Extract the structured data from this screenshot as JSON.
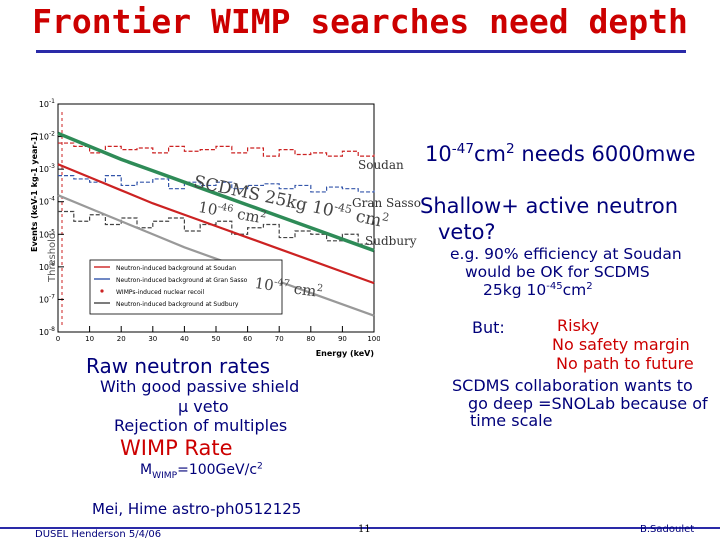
{
  "slide": {
    "title": "Frontier WIMP searches need depth",
    "headline_html": "10<sup>-47</sup>cm<sup>2</sup> needs 6000mwe",
    "shallow": "Shallow+ active neutron",
    "veto": "veto?",
    "example_line1": "e.g. 90% efficiency at Soudan",
    "example_line2": "would be OK for SCDMS",
    "example_line3_html": "25kg 10<sup>-45</sup>cm<sup>2</sup>",
    "but": "But:",
    "risky": "Risky",
    "no_safety": "No safety margin",
    "no_path": "No path to future",
    "collab1": "SCDMS collaboration wants to",
    "collab2": "go deep =SNOLab because of",
    "collab3": "time scale",
    "raw_rates": "Raw  neutron rates",
    "passive1": "With good passive shield",
    "passive2": "μ veto",
    "passive3": "Rejection of multiples",
    "wimp_rate": "WIMP Rate",
    "wimp_mass_html": "M<sub>WIMP</sub>=100GeV/c<sup>2</sup>",
    "reference": "Mei, Hime astro-ph0512125",
    "footer_left": "DUSEL Henderson 5/4/06",
    "footer_page": "11",
    "footer_right": "B.Sadoulet"
  },
  "chart_data": {
    "type": "line",
    "title": "",
    "xlabel": "Energy (keV)",
    "ylabel": "Events (keV-1 kg-1 year-1)",
    "xlim": [
      0,
      100
    ],
    "ylim_log10": [
      -8,
      -1
    ],
    "log_y": true,
    "x_ticks": [
      "0",
      "10",
      "20",
      "30",
      "40",
      "50",
      "60",
      "70",
      "80",
      "90",
      "100"
    ],
    "y_ticks": [
      "10-8",
      "10-7",
      "10-6",
      "10-5",
      "10-4",
      "10-3",
      "10-2",
      "10-1"
    ],
    "threshold_label": "Threshold",
    "legend_position": "lower-left",
    "legend": [
      {
        "label": "Neutron-induced background at Soudan",
        "color": "#cc2222",
        "style": "solid"
      },
      {
        "label": "Neutron-induced background at Gran Sasso",
        "color": "#3355aa",
        "style": "solid"
      },
      {
        "label": "WIMPs-induced nuclear recoil",
        "color": "#cc2222",
        "style": "dot"
      },
      {
        "label": "Neutron-induced background at Sudbury",
        "color": "#444444",
        "style": "solid"
      }
    ],
    "site_labels": [
      "Soudan",
      "Gran Sasso",
      "Sudbury"
    ],
    "annotations": [
      {
        "text": "SCDMS 25kg 10-45 cm2",
        "color": "#444444"
      },
      {
        "text": "10-46 cm2",
        "color": "#444444"
      },
      {
        "text": "10-47 cm2",
        "color": "#444444"
      }
    ],
    "series": [
      {
        "name": "Soudan",
        "color": "#cc2222",
        "x": [
          0,
          5,
          10,
          15,
          20,
          25,
          30,
          35,
          40,
          45,
          50,
          55,
          60,
          65,
          70,
          75,
          80,
          85,
          90,
          95,
          100
        ],
        "y_log10": [
          -2.2,
          -2.3,
          -2.5,
          -2.3,
          -2.4,
          -2.35,
          -2.5,
          -2.3,
          -2.45,
          -2.4,
          -2.3,
          -2.5,
          -2.35,
          -2.6,
          -2.4,
          -2.55,
          -2.5,
          -2.6,
          -2.45,
          -2.6,
          -2.55
        ]
      },
      {
        "name": "Gran Sasso",
        "color": "#3355aa",
        "x": [
          0,
          5,
          10,
          15,
          20,
          25,
          30,
          35,
          40,
          45,
          50,
          55,
          60,
          65,
          70,
          75,
          80,
          85,
          90,
          95,
          100
        ],
        "y_log10": [
          -3.2,
          -3.3,
          -3.4,
          -3.2,
          -3.5,
          -3.4,
          -3.3,
          -3.6,
          -3.4,
          -3.5,
          -3.4,
          -3.6,
          -3.5,
          -3.45,
          -3.6,
          -3.5,
          -3.7,
          -3.55,
          -3.6,
          -3.7,
          -3.65
        ]
      },
      {
        "name": "Sudbury",
        "color": "#444444",
        "x": [
          0,
          5,
          10,
          15,
          20,
          25,
          30,
          35,
          40,
          45,
          50,
          55,
          60,
          65,
          70,
          75,
          80,
          85,
          90,
          95,
          100
        ],
        "y_log10": [
          -4.3,
          -4.6,
          -4.4,
          -4.7,
          -4.5,
          -4.8,
          -4.6,
          -4.5,
          -4.9,
          -4.7,
          -4.6,
          -5.0,
          -4.8,
          -4.7,
          -5.1,
          -4.9,
          -5.0,
          -5.2,
          -5.0,
          -5.3,
          -5.1
        ]
      },
      {
        "name": "10-45",
        "color": "#2e8b57",
        "x": [
          0,
          10,
          20,
          30,
          40,
          50,
          60,
          70,
          80,
          90,
          100
        ],
        "y_log10": [
          -1.9,
          -2.3,
          -2.7,
          -3.05,
          -3.4,
          -3.75,
          -4.1,
          -4.45,
          -4.8,
          -5.15,
          -5.5
        ]
      },
      {
        "name": "10-46",
        "color": "#cc2222",
        "x": [
          0,
          10,
          20,
          30,
          40,
          50,
          60,
          70,
          80,
          90,
          100
        ],
        "y_log10": [
          -2.85,
          -3.25,
          -3.65,
          -4.05,
          -4.4,
          -4.75,
          -5.1,
          -5.45,
          -5.8,
          -6.15,
          -6.5
        ]
      },
      {
        "name": "10-47",
        "color": "#999999",
        "x": [
          0,
          10,
          20,
          30,
          40,
          50,
          60,
          70,
          80,
          90,
          100
        ],
        "y_log10": [
          -3.8,
          -4.2,
          -4.6,
          -5.0,
          -5.4,
          -5.75,
          -6.1,
          -6.45,
          -6.8,
          -7.15,
          -7.5
        ]
      }
    ]
  }
}
